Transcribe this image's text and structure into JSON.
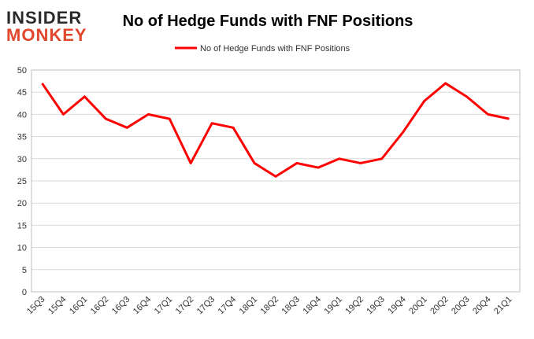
{
  "logo": {
    "line1": "INSIDER",
    "line2": "MONKEY"
  },
  "chart_data": {
    "type": "line",
    "title": "No of Hedge Funds with FNF Positions",
    "categories": [
      "15Q3",
      "15Q4",
      "16Q1",
      "16Q2",
      "16Q3",
      "16Q4",
      "17Q1",
      "17Q2",
      "17Q3",
      "17Q4",
      "18Q1",
      "18Q2",
      "18Q3",
      "18Q4",
      "19Q1",
      "19Q2",
      "19Q3",
      "19Q4",
      "20Q1",
      "20Q2",
      "20Q3",
      "20Q4",
      "21Q1"
    ],
    "series": [
      {
        "name": "No of Hedge Funds with FNF Positions",
        "color": "#ff0000",
        "values": [
          47,
          40,
          44,
          39,
          37,
          40,
          39,
          29,
          38,
          37,
          29,
          26,
          29,
          28,
          30,
          29,
          30,
          36,
          43,
          47,
          44,
          40,
          39
        ]
      }
    ],
    "ylim": [
      0,
      50
    ],
    "yticks": [
      0,
      5,
      10,
      15,
      20,
      25,
      30,
      35,
      40,
      45,
      50
    ],
    "grid": true,
    "legend": "top"
  }
}
